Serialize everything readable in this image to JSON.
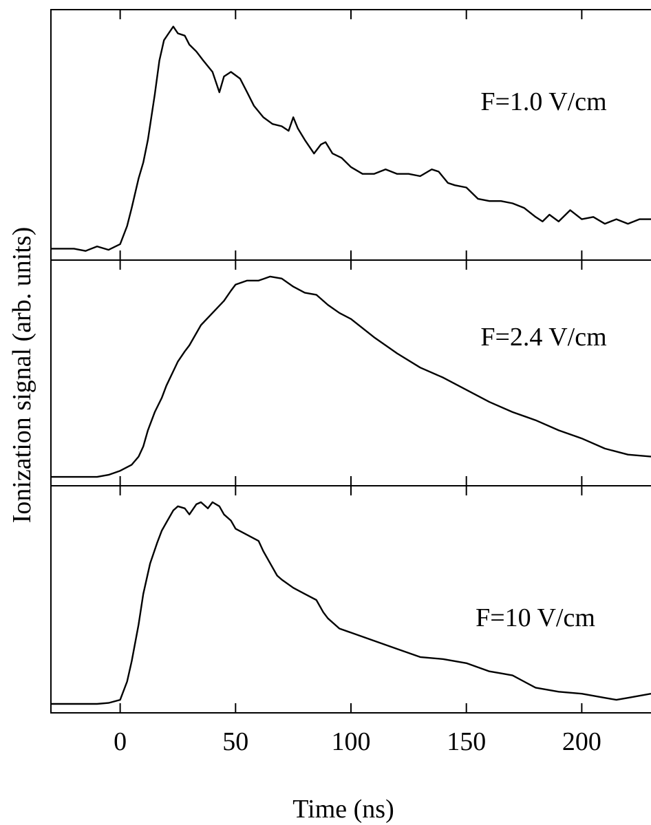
{
  "chart_data": {
    "type": "line",
    "layout": "stacked-panels",
    "xlabel": "Time (ns)",
    "ylabel": "Ionization signal (arb. units)",
    "xlim": [
      -30,
      230
    ],
    "xticks": [
      0,
      50,
      100,
      150,
      200
    ],
    "grid": false,
    "panels": [
      {
        "label": "F=1.0 V/cm",
        "ylim": [
          0,
          1.02
        ],
        "x": [
          -30,
          -20,
          -15,
          -10,
          -5,
          0,
          3,
          5,
          8,
          10,
          12,
          15,
          17,
          19,
          21,
          23,
          25,
          28,
          30,
          33,
          36,
          40,
          43,
          45,
          48,
          52,
          55,
          58,
          62,
          66,
          70,
          73,
          75,
          77,
          80,
          84,
          87,
          89,
          92,
          96,
          100,
          105,
          110,
          115,
          120,
          125,
          130,
          135,
          138,
          142,
          145,
          150,
          155,
          160,
          165,
          170,
          175,
          180,
          183,
          186,
          190,
          195,
          200,
          205,
          210,
          215,
          220,
          225,
          230
        ],
        "values": [
          0.02,
          0.02,
          0.01,
          0.03,
          0.015,
          0.04,
          0.12,
          0.2,
          0.33,
          0.4,
          0.5,
          0.7,
          0.85,
          0.94,
          0.97,
          1.0,
          0.97,
          0.96,
          0.92,
          0.89,
          0.85,
          0.8,
          0.71,
          0.78,
          0.8,
          0.77,
          0.71,
          0.65,
          0.6,
          0.57,
          0.56,
          0.54,
          0.6,
          0.55,
          0.5,
          0.44,
          0.48,
          0.49,
          0.44,
          0.42,
          0.38,
          0.35,
          0.35,
          0.37,
          0.35,
          0.35,
          0.34,
          0.37,
          0.36,
          0.31,
          0.3,
          0.29,
          0.24,
          0.23,
          0.23,
          0.22,
          0.2,
          0.16,
          0.14,
          0.17,
          0.14,
          0.19,
          0.15,
          0.16,
          0.13,
          0.15,
          0.13,
          0.15,
          0.15
        ]
      },
      {
        "label": "F=2.4 V/cm",
        "ylim": [
          0,
          1.02
        ],
        "x": [
          -30,
          -20,
          -10,
          -5,
          0,
          5,
          8,
          10,
          12,
          15,
          18,
          20,
          25,
          28,
          30,
          35,
          40,
          45,
          48,
          50,
          55,
          60,
          65,
          70,
          75,
          80,
          85,
          90,
          95,
          100,
          110,
          120,
          130,
          140,
          150,
          160,
          170,
          180,
          190,
          200,
          210,
          220,
          230
        ],
        "values": [
          0.01,
          0.01,
          0.01,
          0.02,
          0.04,
          0.07,
          0.11,
          0.16,
          0.24,
          0.33,
          0.4,
          0.46,
          0.58,
          0.63,
          0.66,
          0.76,
          0.82,
          0.88,
          0.93,
          0.96,
          0.98,
          0.98,
          1.0,
          0.99,
          0.95,
          0.92,
          0.91,
          0.86,
          0.82,
          0.79,
          0.7,
          0.62,
          0.55,
          0.5,
          0.44,
          0.38,
          0.33,
          0.29,
          0.24,
          0.2,
          0.15,
          0.12,
          0.11
        ]
      },
      {
        "label": "F=10 V/cm",
        "ylim": [
          0,
          1.02
        ],
        "x": [
          -30,
          -20,
          -10,
          -5,
          0,
          3,
          5,
          8,
          10,
          13,
          16,
          18,
          20,
          23,
          25,
          28,
          30,
          33,
          35,
          38,
          40,
          43,
          45,
          48,
          50,
          55,
          60,
          62,
          65,
          68,
          70,
          75,
          80,
          85,
          88,
          90,
          95,
          100,
          110,
          120,
          130,
          140,
          150,
          160,
          165,
          170,
          175,
          180,
          190,
          200,
          205,
          210,
          215,
          220,
          225,
          230
        ],
        "values": [
          0.01,
          0.01,
          0.01,
          0.015,
          0.03,
          0.12,
          0.22,
          0.4,
          0.55,
          0.7,
          0.8,
          0.86,
          0.9,
          0.96,
          0.98,
          0.97,
          0.94,
          0.99,
          1.0,
          0.97,
          1.0,
          0.98,
          0.94,
          0.91,
          0.87,
          0.84,
          0.81,
          0.76,
          0.7,
          0.64,
          0.62,
          0.58,
          0.55,
          0.52,
          0.46,
          0.43,
          0.38,
          0.36,
          0.32,
          0.28,
          0.24,
          0.23,
          0.21,
          0.17,
          0.16,
          0.15,
          0.12,
          0.09,
          0.07,
          0.06,
          0.05,
          0.04,
          0.03,
          0.04,
          0.05,
          0.06
        ]
      }
    ]
  }
}
